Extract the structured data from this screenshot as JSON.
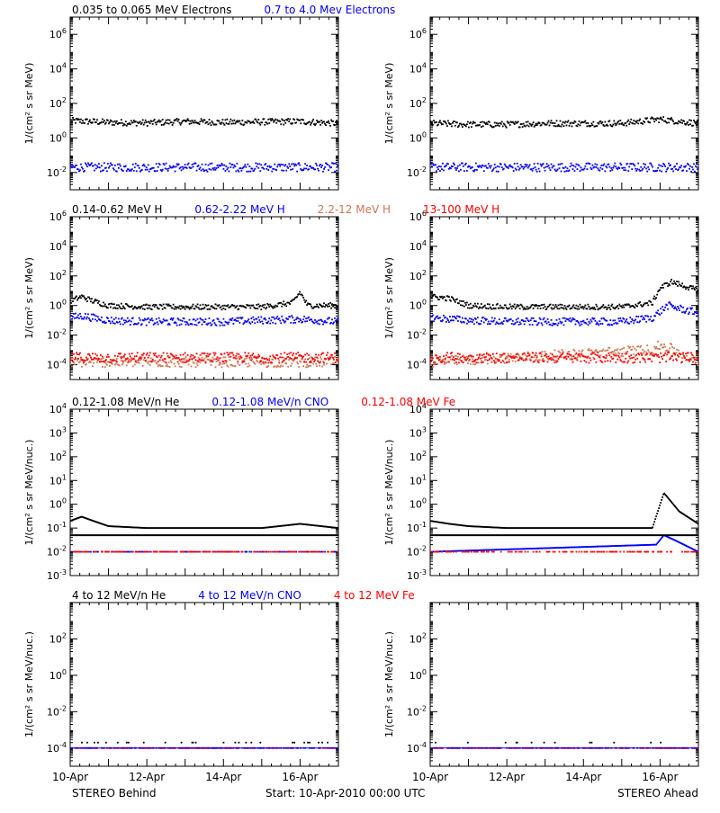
{
  "colors": {
    "black": "#000000",
    "blue": "#0000ff",
    "red": "#ff0000",
    "salmon": "#cc7755",
    "axis": "#000000"
  },
  "footer": {
    "left_label": "STEREO Behind",
    "center_label": "Start: 10-Apr-2010 00:00 UTC",
    "right_label": "STEREO Ahead"
  },
  "x_axis": {
    "ticks": [
      {
        "day": 0,
        "label": "10-Apr"
      },
      {
        "day": 2,
        "label": "12-Apr"
      },
      {
        "day": 4,
        "label": "14-Apr"
      },
      {
        "day": 6,
        "label": "16-Apr"
      }
    ],
    "range_days": [
      0,
      7
    ]
  },
  "rows": [
    {
      "id": "electrons",
      "ylabel": "1/(cm² s sr MeV)",
      "ylim_log": [
        -3,
        7
      ],
      "yticks": [
        {
          "exp": -2,
          "label": "10-2"
        },
        {
          "exp": 0,
          "label": "100"
        },
        {
          "exp": 2,
          "label": "102"
        },
        {
          "exp": 4,
          "label": "104"
        },
        {
          "exp": 6,
          "label": "106"
        }
      ],
      "legend": [
        {
          "text": "0.035 to 0.065 MeV Electrons",
          "color": "#000000"
        },
        {
          "text": "0.7 to 4.0 Mev Electrons",
          "color": "#0000ff"
        }
      ]
    },
    {
      "id": "protons",
      "ylabel": "1/(cm² s sr MeV)",
      "ylim_log": [
        -5,
        6
      ],
      "yticks": [
        {
          "exp": -4,
          "label": "10-4"
        },
        {
          "exp": -2,
          "label": "10-2"
        },
        {
          "exp": 0,
          "label": "100"
        },
        {
          "exp": 2,
          "label": "102"
        },
        {
          "exp": 4,
          "label": "104"
        },
        {
          "exp": 6,
          "label": "106"
        }
      ],
      "legend": [
        {
          "text": "0.14-0.62 MeV H",
          "color": "#000000"
        },
        {
          "text": "0.62-2.22 MeV H",
          "color": "#0000ff"
        },
        {
          "text": "2.2-12 MeV H",
          "color": "#cc7755"
        },
        {
          "text": "13-100 MeV H",
          "color": "#ff0000"
        }
      ]
    },
    {
      "id": "low-heavy",
      "ylabel": "1/(cm² s sr MeV/nuc.)",
      "ylim_log": [
        -3,
        4
      ],
      "yticks": [
        {
          "exp": -3,
          "label": "10-3"
        },
        {
          "exp": -2,
          "label": "10-2"
        },
        {
          "exp": -1,
          "label": "10-1"
        },
        {
          "exp": 0,
          "label": "100"
        },
        {
          "exp": 1,
          "label": "101"
        },
        {
          "exp": 2,
          "label": "102"
        },
        {
          "exp": 3,
          "label": "103"
        },
        {
          "exp": 4,
          "label": "104"
        }
      ],
      "legend": [
        {
          "text": "0.12-1.08 MeV/n He",
          "color": "#000000"
        },
        {
          "text": "0.12-1.08 MeV/n CNO",
          "color": "#0000ff"
        },
        {
          "text": "0.12-1.08 MeV Fe",
          "color": "#ff0000"
        }
      ]
    },
    {
      "id": "high-heavy",
      "ylabel": "1/(cm² s sr MeV/nuc.)",
      "ylim_log": [
        -5,
        4
      ],
      "yticks": [
        {
          "exp": -4,
          "label": "10-4"
        },
        {
          "exp": -2,
          "label": "10-2"
        },
        {
          "exp": 0,
          "label": "100"
        },
        {
          "exp": 2,
          "label": "102"
        }
      ],
      "legend": [
        {
          "text": "4 to 12 MeV/n He",
          "color": "#000000"
        },
        {
          "text": "4 to 12 MeV/n CNO",
          "color": "#0000ff"
        },
        {
          "text": "4 to 12 MeV Fe",
          "color": "#ff0000"
        }
      ]
    }
  ],
  "chart_data": [
    {
      "type": "scatter",
      "panel": "STEREO Behind",
      "row": "electrons",
      "ylog": true,
      "series": [
        {
          "name": "0.035 to 0.065 MeV Electrons",
          "x": [
            0,
            1,
            2,
            3,
            4,
            5,
            6,
            7
          ],
          "y": [
            10,
            8,
            7.5,
            9,
            8,
            8.5,
            9,
            7
          ]
        },
        {
          "name": "0.7 to 4.0 Mev Electrons",
          "x": [
            0,
            1,
            2,
            3,
            4,
            5,
            6,
            7
          ],
          "y": [
            0.02,
            0.02,
            0.02,
            0.02,
            0.02,
            0.02,
            0.02,
            0.02
          ]
        }
      ]
    },
    {
      "type": "scatter",
      "panel": "STEREO Ahead",
      "row": "electrons",
      "ylog": true,
      "series": [
        {
          "name": "0.035 to 0.065 MeV Electrons",
          "x": [
            0,
            1,
            2,
            3,
            4,
            5,
            6,
            7
          ],
          "y": [
            7,
            6,
            6,
            7,
            7,
            7,
            12,
            7
          ]
        },
        {
          "name": "0.7 to 4.0 Mev Electrons",
          "x": [
            0,
            1,
            2,
            3,
            4,
            5,
            6,
            7
          ],
          "y": [
            0.02,
            0.02,
            0.02,
            0.02,
            0.02,
            0.02,
            0.02,
            0.02
          ]
        }
      ]
    },
    {
      "type": "scatter",
      "panel": "STEREO Behind",
      "row": "protons",
      "ylog": true,
      "series": [
        {
          "name": "0.14-0.62 MeV H",
          "x": [
            0,
            0.3,
            0.6,
            1,
            2,
            3,
            4,
            5,
            5.8,
            6,
            6.2,
            7
          ],
          "y": [
            2,
            4,
            2,
            1,
            0.8,
            0.8,
            0.8,
            0.8,
            1.5,
            8,
            1,
            1
          ]
        },
        {
          "name": "0.62-2.22 MeV H",
          "x": [
            0,
            0.3,
            1,
            2,
            3,
            4,
            5,
            6,
            7
          ],
          "y": [
            0.15,
            0.2,
            0.1,
            0.08,
            0.08,
            0.08,
            0.1,
            0.12,
            0.08
          ]
        },
        {
          "name": "2.2-12 MeV H",
          "x": [
            0,
            7
          ],
          "y": [
            0.00015,
            0.00015
          ]
        },
        {
          "name": "13-100 MeV H",
          "x": [
            0,
            7
          ],
          "y": [
            0.0003,
            0.0003
          ]
        }
      ]
    },
    {
      "type": "scatter",
      "panel": "STEREO Ahead",
      "row": "protons",
      "ylog": true,
      "series": [
        {
          "name": "0.14-0.62 MeV H",
          "x": [
            0,
            0.5,
            1,
            2,
            3,
            4,
            5,
            5.8,
            6,
            6.3,
            7
          ],
          "y": [
            4,
            3,
            1,
            0.8,
            0.8,
            0.8,
            0.8,
            1.5,
            15,
            40,
            10
          ]
        },
        {
          "name": "0.62-2.22 MeV H",
          "x": [
            0,
            1,
            2,
            3,
            4,
            5,
            5.8,
            6.2,
            7
          ],
          "y": [
            0.15,
            0.1,
            0.08,
            0.08,
            0.08,
            0.08,
            0.15,
            1,
            0.3
          ]
        },
        {
          "name": "2.2-12 MeV H",
          "x": [
            0,
            5.8,
            6.0,
            6.2,
            7
          ],
          "y": [
            0.00015,
            0.001,
            0.002,
            0.0015,
            0.00015
          ]
        },
        {
          "name": "13-100 MeV H",
          "x": [
            0,
            7
          ],
          "y": [
            0.0003,
            0.0003
          ]
        }
      ]
    },
    {
      "type": "scatter",
      "panel": "STEREO Behind",
      "row": "low-heavy",
      "ylog": true,
      "series": [
        {
          "name": "0.12-1.08 MeV/n He",
          "x": [
            0,
            0.3,
            0.6,
            1,
            2,
            3,
            4,
            5,
            6,
            7
          ],
          "y": [
            0.2,
            0.3,
            0.2,
            0.12,
            0.1,
            0.1,
            0.1,
            0.1,
            0.15,
            0.1
          ]
        },
        {
          "name": "0.12-1.08 MeV/n CNO",
          "x": [
            0,
            7
          ],
          "y": [
            0.01,
            0.01
          ]
        },
        {
          "name": "0.12-1.08 MeV Fe",
          "x": [
            0,
            7
          ],
          "y": [
            0.01,
            0.01
          ]
        }
      ]
    },
    {
      "type": "scatter",
      "panel": "STEREO Ahead",
      "row": "low-heavy",
      "ylog": true,
      "series": [
        {
          "name": "0.12-1.08 MeV/n He",
          "x": [
            0,
            0.5,
            1,
            2,
            3,
            4,
            5,
            5.8,
            6.1,
            6.5,
            7
          ],
          "y": [
            0.2,
            0.15,
            0.12,
            0.1,
            0.1,
            0.1,
            0.1,
            0.1,
            3,
            0.5,
            0.15
          ]
        },
        {
          "name": "0.12-1.08 MeV/n CNO",
          "x": [
            0,
            5.9,
            6.1,
            6.4,
            7
          ],
          "y": [
            0.01,
            0.02,
            0.05,
            0.03,
            0.01
          ]
        },
        {
          "name": "0.12-1.08 MeV Fe",
          "x": [
            0,
            7
          ],
          "y": [
            0.01,
            0.01
          ]
        }
      ]
    },
    {
      "type": "scatter",
      "panel": "STEREO Behind",
      "row": "high-heavy",
      "ylog": true,
      "series": [
        {
          "name": "4 to 12 MeV/n He",
          "x": [
            0,
            7
          ],
          "y": [
            0.0002,
            0.0002
          ]
        },
        {
          "name": "4 to 12 MeV/n CNO",
          "x": [
            0,
            7
          ],
          "y": [
            0.0001,
            0.0001
          ]
        },
        {
          "name": "4 to 12 MeV Fe",
          "x": [
            0,
            7
          ],
          "y": [
            0.0001,
            0.0001
          ]
        }
      ]
    },
    {
      "type": "scatter",
      "panel": "STEREO Ahead",
      "row": "high-heavy",
      "ylog": true,
      "series": [
        {
          "name": "4 to 12 MeV/n He",
          "x": [
            0,
            7
          ],
          "y": [
            0.0002,
            0.0002
          ]
        },
        {
          "name": "4 to 12 MeV/n CNO",
          "x": [
            0,
            7
          ],
          "y": [
            0.0001,
            0.0001
          ]
        },
        {
          "name": "4 to 12 MeV Fe",
          "x": [
            0,
            7
          ],
          "y": [
            0.0001,
            0.0001
          ]
        }
      ]
    }
  ]
}
